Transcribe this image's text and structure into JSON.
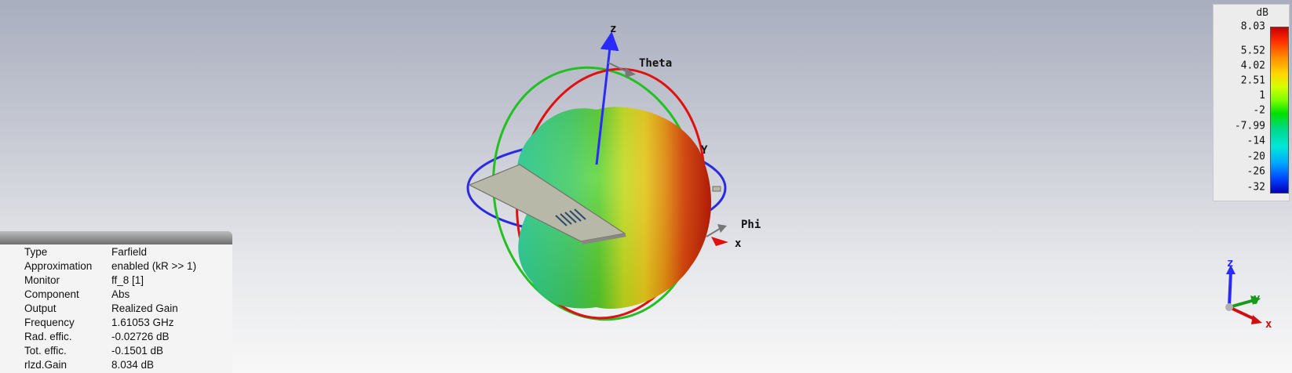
{
  "scene": {
    "axes": {
      "z_label": "z",
      "y_label": "Y",
      "x_label": "x",
      "theta_label": "Theta",
      "phi_label": "Phi"
    },
    "triad": {
      "z": "z",
      "y": "y",
      "x": "x"
    }
  },
  "legend": {
    "unit": "dB",
    "ticks": [
      "8.03",
      "5.52",
      "4.02",
      "2.51",
      "1",
      "-2",
      "-7.99",
      "-14",
      "-20",
      "-26",
      "-32"
    ],
    "colors": {
      "max": "#c80000",
      "mid": "#00e000",
      "min": "#0000b0"
    }
  },
  "info": {
    "rows": [
      {
        "key": "Type",
        "value": "Farfield"
      },
      {
        "key": "Approximation",
        "value": "enabled (kR >> 1)"
      },
      {
        "key": "Monitor",
        "value": "ff_8 [1]"
      },
      {
        "key": "Component",
        "value": "Abs"
      },
      {
        "key": "Output",
        "value": "Realized Gain"
      },
      {
        "key": "Frequency",
        "value": "1.61053 GHz"
      },
      {
        "key": "Rad. effic.",
        "value": "-0.02726 dB"
      },
      {
        "key": "Tot. effic.",
        "value": "-0.1501 dB"
      },
      {
        "key": "rlzd.Gain",
        "value": "8.034 dB"
      }
    ]
  }
}
